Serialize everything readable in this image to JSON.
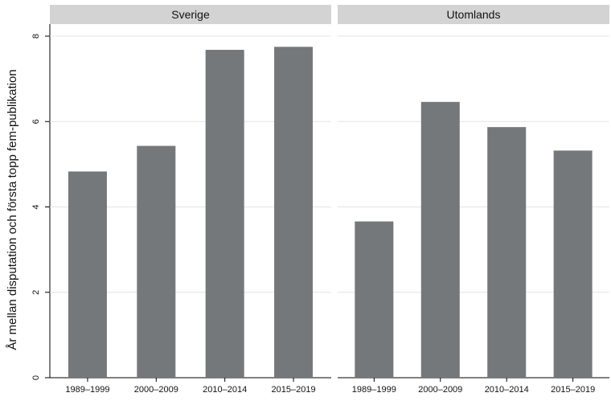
{
  "chart_data": {
    "type": "bar",
    "ylabel": "År mellan disputation och första topp fem-publikation",
    "xlabel": "",
    "ylim": [
      0,
      8
    ],
    "yticks": [
      0,
      2,
      4,
      6,
      8
    ],
    "grid": true,
    "bar_color": "#75787b",
    "facet_header_color": "#d3d3d3",
    "categories": [
      "1989–1999",
      "2000–2009",
      "2010–2014",
      "2015–2019"
    ],
    "panels": [
      {
        "title": "Sverige",
        "values": [
          4.83,
          5.43,
          7.68,
          7.75
        ]
      },
      {
        "title": "Utomlands",
        "values": [
          3.66,
          6.46,
          5.87,
          5.32
        ]
      }
    ]
  }
}
